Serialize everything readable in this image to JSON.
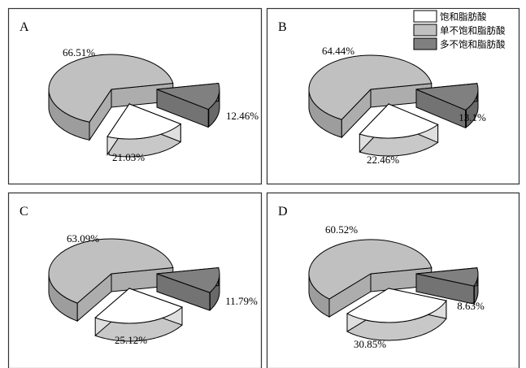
{
  "legend": [
    {
      "label": "饱和脂肪酸",
      "color": "#ffffff"
    },
    {
      "label": "单不饱和脂肪酸",
      "color": "#c0c0c0"
    },
    {
      "label": "多不饱和脂肪酸",
      "color": "#808080"
    }
  ],
  "chart_data": [
    {
      "type": "pie",
      "panel_label": "A",
      "slices": [
        {
          "category": "饱和脂肪酸",
          "value": 21.03,
          "label": "21.03%"
        },
        {
          "category": "单不饱和脂肪酸",
          "value": 66.51,
          "label": "66.51%"
        },
        {
          "category": "多不饱和脂肪酸",
          "value": 12.46,
          "label": "12.46%"
        }
      ]
    },
    {
      "type": "pie",
      "panel_label": "B",
      "slices": [
        {
          "category": "饱和脂肪酸",
          "value": 22.46,
          "label": "22.46%"
        },
        {
          "category": "单不饱和脂肪酸",
          "value": 64.44,
          "label": "64.44%"
        },
        {
          "category": "多不饱和脂肪酸",
          "value": 13.1,
          "label": "13.1%"
        }
      ]
    },
    {
      "type": "pie",
      "panel_label": "C",
      "slices": [
        {
          "category": "饱和脂肪酸",
          "value": 25.12,
          "label": "25.12%"
        },
        {
          "category": "单不饱和脂肪酸",
          "value": 63.09,
          "label": "63.09%"
        },
        {
          "category": "多不饱和脂肪酸",
          "value": 11.79,
          "label": "11.79%"
        }
      ]
    },
    {
      "type": "pie",
      "panel_label": "D",
      "slices": [
        {
          "category": "饱和脂肪酸",
          "value": 30.85,
          "label": "30.85%"
        },
        {
          "category": "单不饱和脂肪酸",
          "value": 60.52,
          "label": "60.52%"
        },
        {
          "category": "多不饱和脂肪酸",
          "value": 8.63,
          "label": "8.63%"
        }
      ]
    }
  ]
}
